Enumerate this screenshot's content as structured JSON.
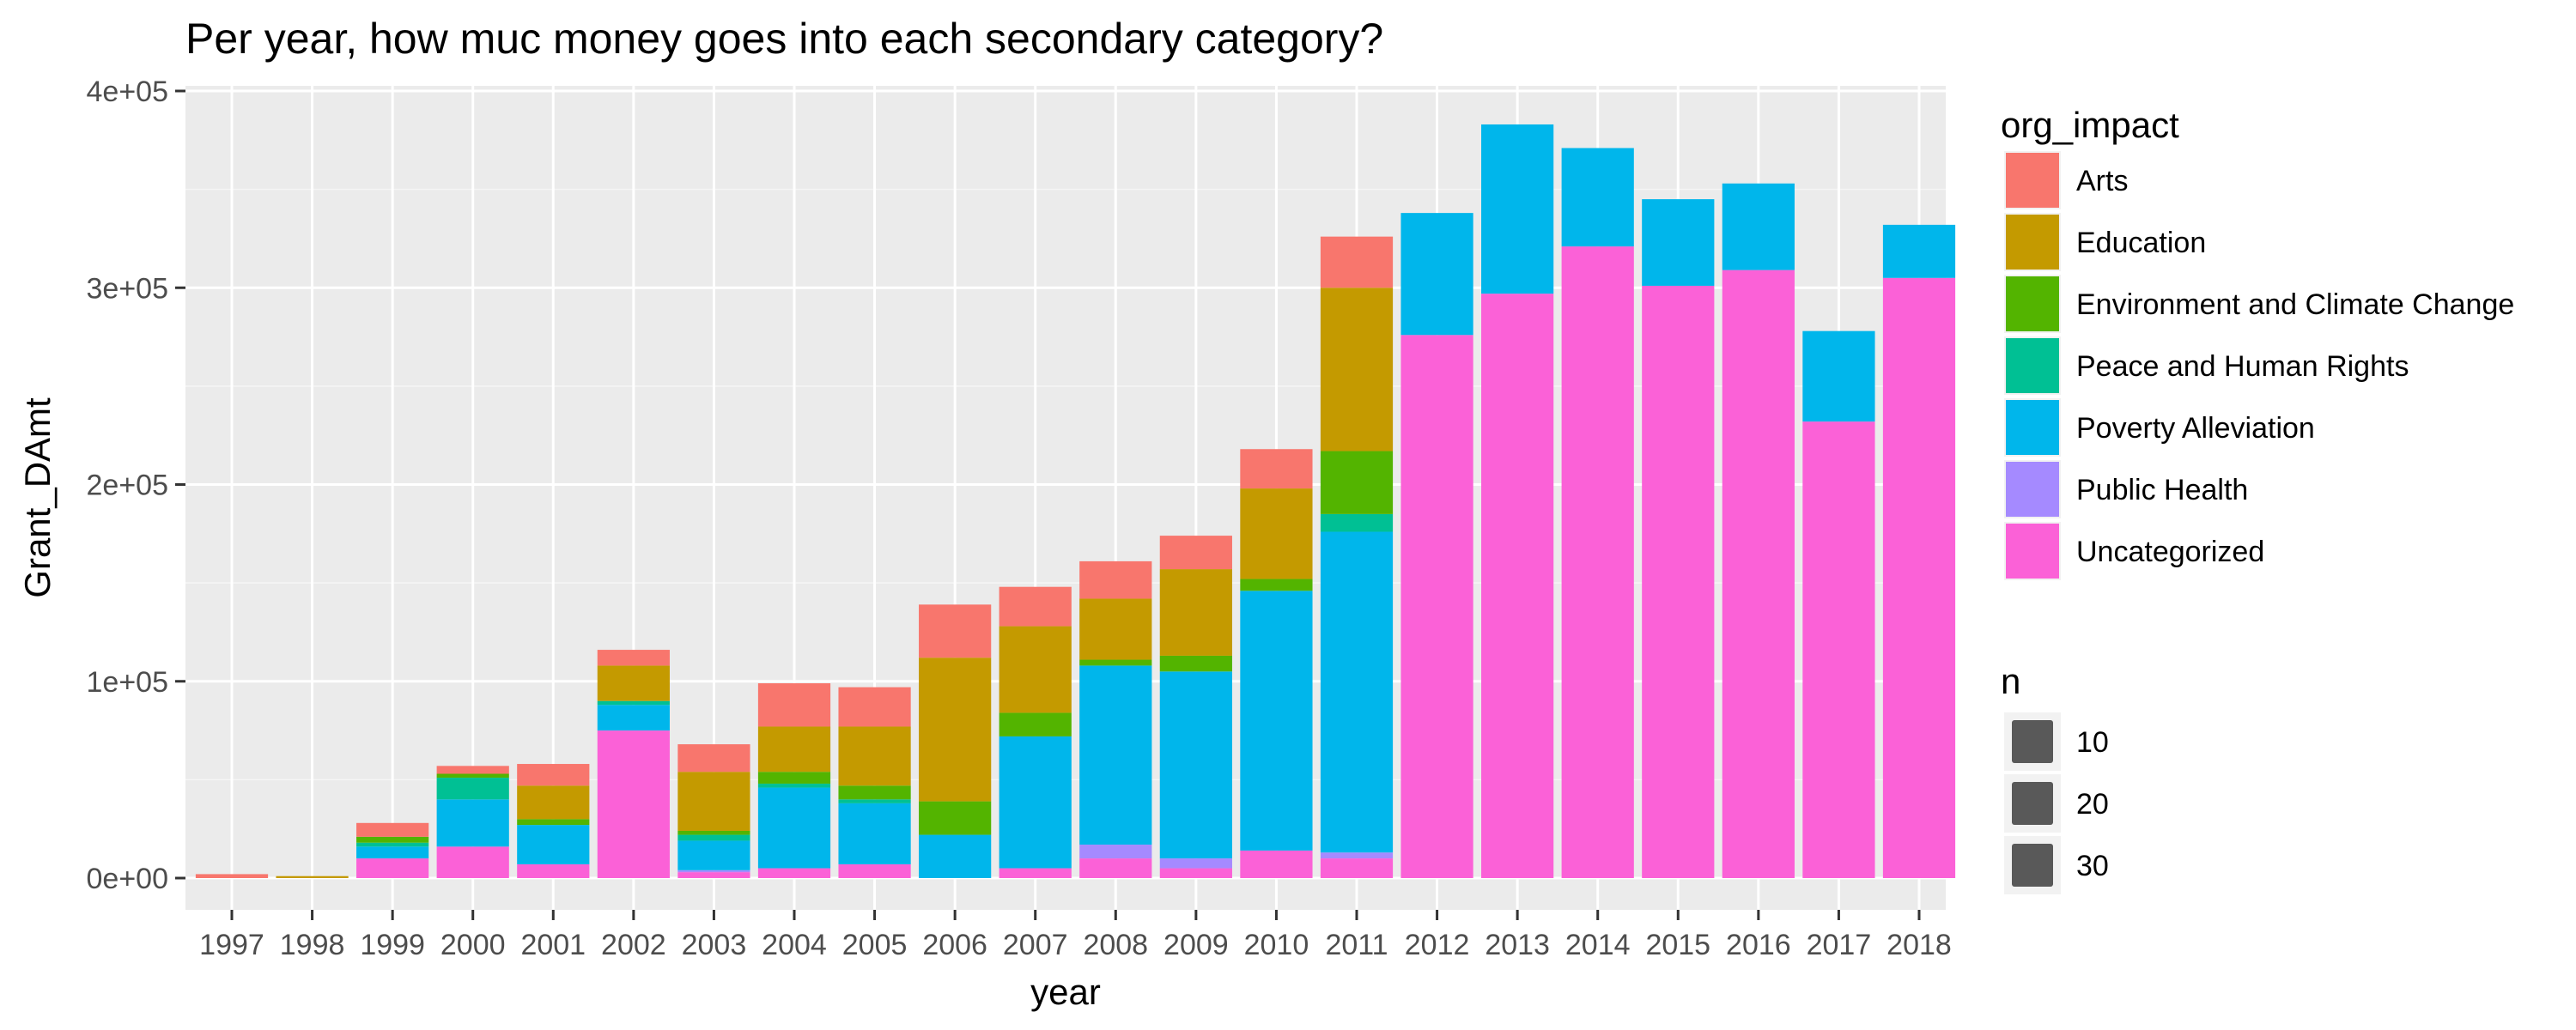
{
  "chart_data": {
    "type": "bar",
    "stacked": true,
    "title": "Per year, how muc money goes into each secondary category?",
    "xlabel": "year",
    "ylabel": "Grant_DAmt",
    "ylim": [
      0,
      400000
    ],
    "y_ticks": [
      {
        "value": 0,
        "label": "0e+00"
      },
      {
        "value": 100000,
        "label": "1e+05"
      },
      {
        "value": 200000,
        "label": "2e+05"
      },
      {
        "value": 300000,
        "label": "3e+05"
      },
      {
        "value": 400000,
        "label": "4e+05"
      }
    ],
    "grid": true,
    "legend_position": "right",
    "categories": [
      "1997",
      "1998",
      "1999",
      "2000",
      "2001",
      "2002",
      "2003",
      "2004",
      "2005",
      "2006",
      "2007",
      "2008",
      "2009",
      "2010",
      "2011",
      "2012",
      "2013",
      "2014",
      "2015",
      "2016",
      "2017",
      "2018"
    ],
    "series": [
      {
        "name": "Uncategorized",
        "color": "#FB61D7",
        "values": [
          0,
          0,
          10000,
          16000,
          7000,
          75000,
          3000,
          5000,
          7000,
          0,
          5000,
          10000,
          5000,
          14000,
          10000,
          276000,
          297000,
          321000,
          301000,
          309000,
          232000,
          305000
        ]
      },
      {
        "name": "Public Health",
        "color": "#A58AFF",
        "values": [
          0,
          0,
          0,
          0,
          0,
          0,
          1000,
          0,
          0,
          0,
          0,
          7000,
          5000,
          0,
          3000,
          0,
          0,
          0,
          0,
          0,
          0,
          0
        ]
      },
      {
        "name": "Poverty Alleviation",
        "color": "#00B6EB",
        "values": [
          0,
          0,
          6000,
          24000,
          20000,
          13000,
          15000,
          41000,
          31000,
          22000,
          67000,
          91000,
          95000,
          132000,
          163000,
          62000,
          86000,
          50000,
          44000,
          44000,
          46000,
          27000
        ]
      },
      {
        "name": "Peace and Human Rights",
        "color": "#00C094",
        "values": [
          0,
          0,
          2000,
          11000,
          0,
          2000,
          3000,
          2000,
          2000,
          0,
          0,
          0,
          0,
          0,
          9000,
          0,
          0,
          0,
          0,
          0,
          0,
          0
        ]
      },
      {
        "name": "Environment and Climate Change",
        "color": "#53B400",
        "values": [
          0,
          0,
          3000,
          2000,
          3000,
          0,
          2000,
          6000,
          7000,
          17000,
          12000,
          3000,
          8000,
          6000,
          32000,
          0,
          0,
          0,
          0,
          0,
          0,
          0
        ]
      },
      {
        "name": "Education",
        "color": "#C49A00",
        "values": [
          0,
          1000,
          0,
          0,
          17000,
          18000,
          30000,
          23000,
          30000,
          73000,
          44000,
          31000,
          44000,
          46000,
          83000,
          0,
          0,
          0,
          0,
          0,
          0,
          0
        ]
      },
      {
        "name": "Arts",
        "color": "#F8766D",
        "values": [
          2000,
          0,
          7000,
          4000,
          11000,
          8000,
          14000,
          22000,
          20000,
          27000,
          20000,
          19000,
          17000,
          20000,
          26000,
          0,
          0,
          0,
          0,
          0,
          0,
          0
        ]
      }
    ],
    "legend": {
      "fill_title": "org_impact",
      "fill_items": [
        "Arts",
        "Education",
        "Environment and Climate Change",
        "Peace and Human Rights",
        "Poverty Alleviation",
        "Public Health",
        "Uncategorized"
      ],
      "size_title": "n",
      "size_items": [
        "10",
        "20",
        "30"
      ]
    },
    "colors": {
      "panel_background": "#EBEBEB",
      "gridline": "#FFFFFF",
      "legend_size_key": "#595959"
    }
  }
}
